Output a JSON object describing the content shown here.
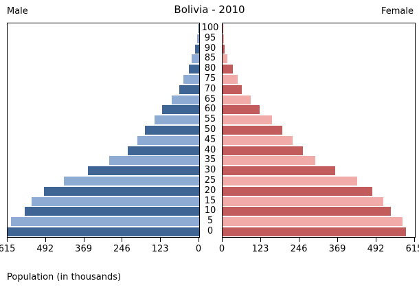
{
  "header": {
    "title": "Bolivia - 2010",
    "male_label": "Male",
    "female_label": "Female"
  },
  "footer": {
    "xlabel": "Population (in thousands)"
  },
  "colors": {
    "male_dark": "#3E6593",
    "male_light": "#8DABD3",
    "female_dark": "#C25B5B",
    "female_light": "#F1ACAA",
    "axis": "#000000",
    "background": "#ffffff"
  },
  "chart_data": {
    "type": "bar",
    "subtype": "population_pyramid",
    "title": "Bolivia - 2010",
    "xlabel": "Population (in thousands)",
    "grid": false,
    "legend_position": "none",
    "age_groups": [
      0,
      5,
      10,
      15,
      20,
      25,
      30,
      35,
      40,
      45,
      50,
      55,
      60,
      65,
      70,
      75,
      80,
      85,
      90,
      95,
      100
    ],
    "series": [
      {
        "name": "Male",
        "side": "left",
        "values": [
          615,
          605,
          560,
          538,
          499,
          434,
          357,
          289,
          230,
          198,
          175,
          143,
          120,
          89,
          64,
          50,
          33,
          25,
          14,
          6,
          3
        ]
      },
      {
        "name": "Female",
        "side": "right",
        "values": [
          587,
          576,
          539,
          515,
          479,
          431,
          361,
          297,
          257,
          224,
          191,
          158,
          118,
          89,
          61,
          48,
          32,
          15,
          7,
          4,
          2
        ]
      }
    ],
    "xlim": [
      0,
      615
    ],
    "xticks_male": [
      615,
      492,
      369,
      246,
      123,
      0
    ],
    "xticks_female": [
      0,
      123,
      246,
      369,
      492,
      615
    ],
    "color_rule": "ages divisible by 10 use dark shade, others light shade"
  }
}
